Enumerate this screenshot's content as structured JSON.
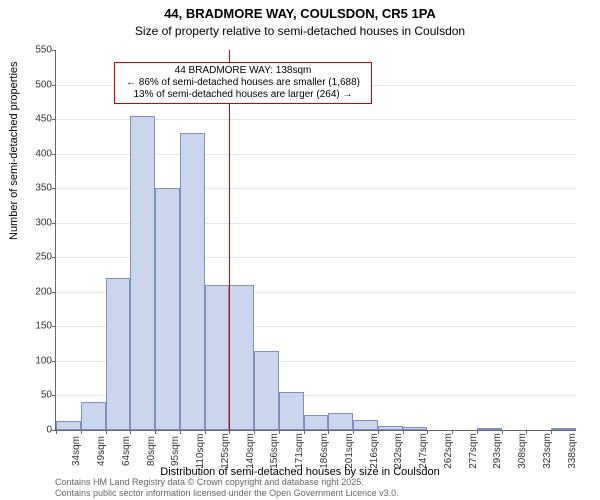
{
  "chart": {
    "type": "histogram",
    "title": "44, BRADMORE WAY, COULSDON, CR5 1PA",
    "subtitle": "Size of property relative to semi-detached houses in Coulsdon",
    "y_label": "Number of semi-detached properties",
    "x_label": "Distribution of semi-detached houses by size in Coulsdon",
    "background_color": "#ffffff",
    "grid_color": "#e5e5e5",
    "axis_color": "#666666",
    "bar_fill": "#cbd6ed",
    "bar_border": "#7a91c2",
    "ylim": [
      0,
      550
    ],
    "y_ticks": [
      0,
      50,
      100,
      150,
      200,
      250,
      300,
      350,
      400,
      450,
      500,
      550
    ],
    "x_ticks": [
      "34sqm",
      "49sqm",
      "64sqm",
      "80sqm",
      "95sqm",
      "110sqm",
      "125sqm",
      "140sqm",
      "156sqm",
      "171sqm",
      "186sqm",
      "201sqm",
      "216sqm",
      "232sqm",
      "247sqm",
      "262sqm",
      "277sqm",
      "293sqm",
      "308sqm",
      "323sqm",
      "338sqm"
    ],
    "bars": [
      13,
      40,
      220,
      455,
      350,
      430,
      210,
      210,
      115,
      55,
      22,
      25,
      15,
      6,
      4,
      0,
      0,
      1,
      0,
      0,
      1
    ],
    "reference_line": {
      "bin_index": 7,
      "color": "#d40000"
    },
    "annotation": {
      "line1": "44 BRADMORE WAY: 138sqm",
      "line2": "← 86% of semi-detached houses are smaller (1,688)",
      "line3": "13% of semi-detached houses are larger (264) →",
      "border_color": "#d40000",
      "text_color": "#000000",
      "bg_color": "#ffffff",
      "fontsize": 10
    },
    "title_fontsize": 13,
    "subtitle_fontsize": 12,
    "label_fontsize": 11,
    "tick_fontsize": 10,
    "attribution_line1": "Contains HM Land Registry data © Crown copyright and database right 2025.",
    "attribution_line2": "Contains public sector information licensed under the Open Government Licence v3.0.",
    "attribution_color": "#666666"
  }
}
